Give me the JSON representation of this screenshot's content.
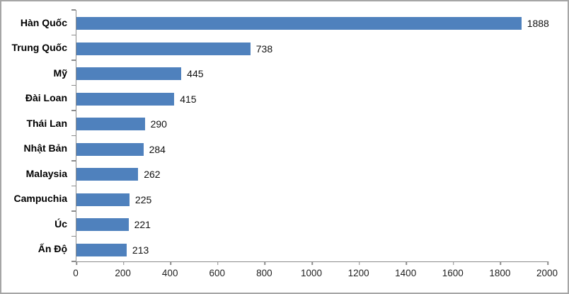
{
  "chart_data": {
    "type": "bar",
    "orientation": "horizontal",
    "title": "",
    "xlabel": "",
    "ylabel": "",
    "categories": [
      "Hàn Quốc",
      "Trung Quốc",
      "Mỹ",
      "Đài Loan",
      "Thái Lan",
      "Nhật Bản",
      "Malaysia",
      "Campuchia",
      "Úc",
      "Ấn Độ"
    ],
    "values": [
      1888,
      738,
      445,
      415,
      290,
      284,
      262,
      225,
      221,
      213
    ],
    "data_labels": [
      "1888",
      "738",
      "445",
      "415",
      "290",
      "284",
      "262",
      "225",
      "221",
      "213"
    ],
    "xlim": [
      0,
      2000
    ],
    "x_ticks": [
      0,
      200,
      400,
      600,
      800,
      1000,
      1200,
      1400,
      1600,
      1800,
      2000
    ],
    "grid": false,
    "legend": false,
    "colors": {
      "bar": "#4F81BD",
      "axis": "#8C8C8C",
      "frame_border": "#A6A6A6",
      "category_label": "#000000",
      "value_label": "#111111",
      "tick_label": "#1F1F1F",
      "background": "#FFFFFF"
    }
  }
}
